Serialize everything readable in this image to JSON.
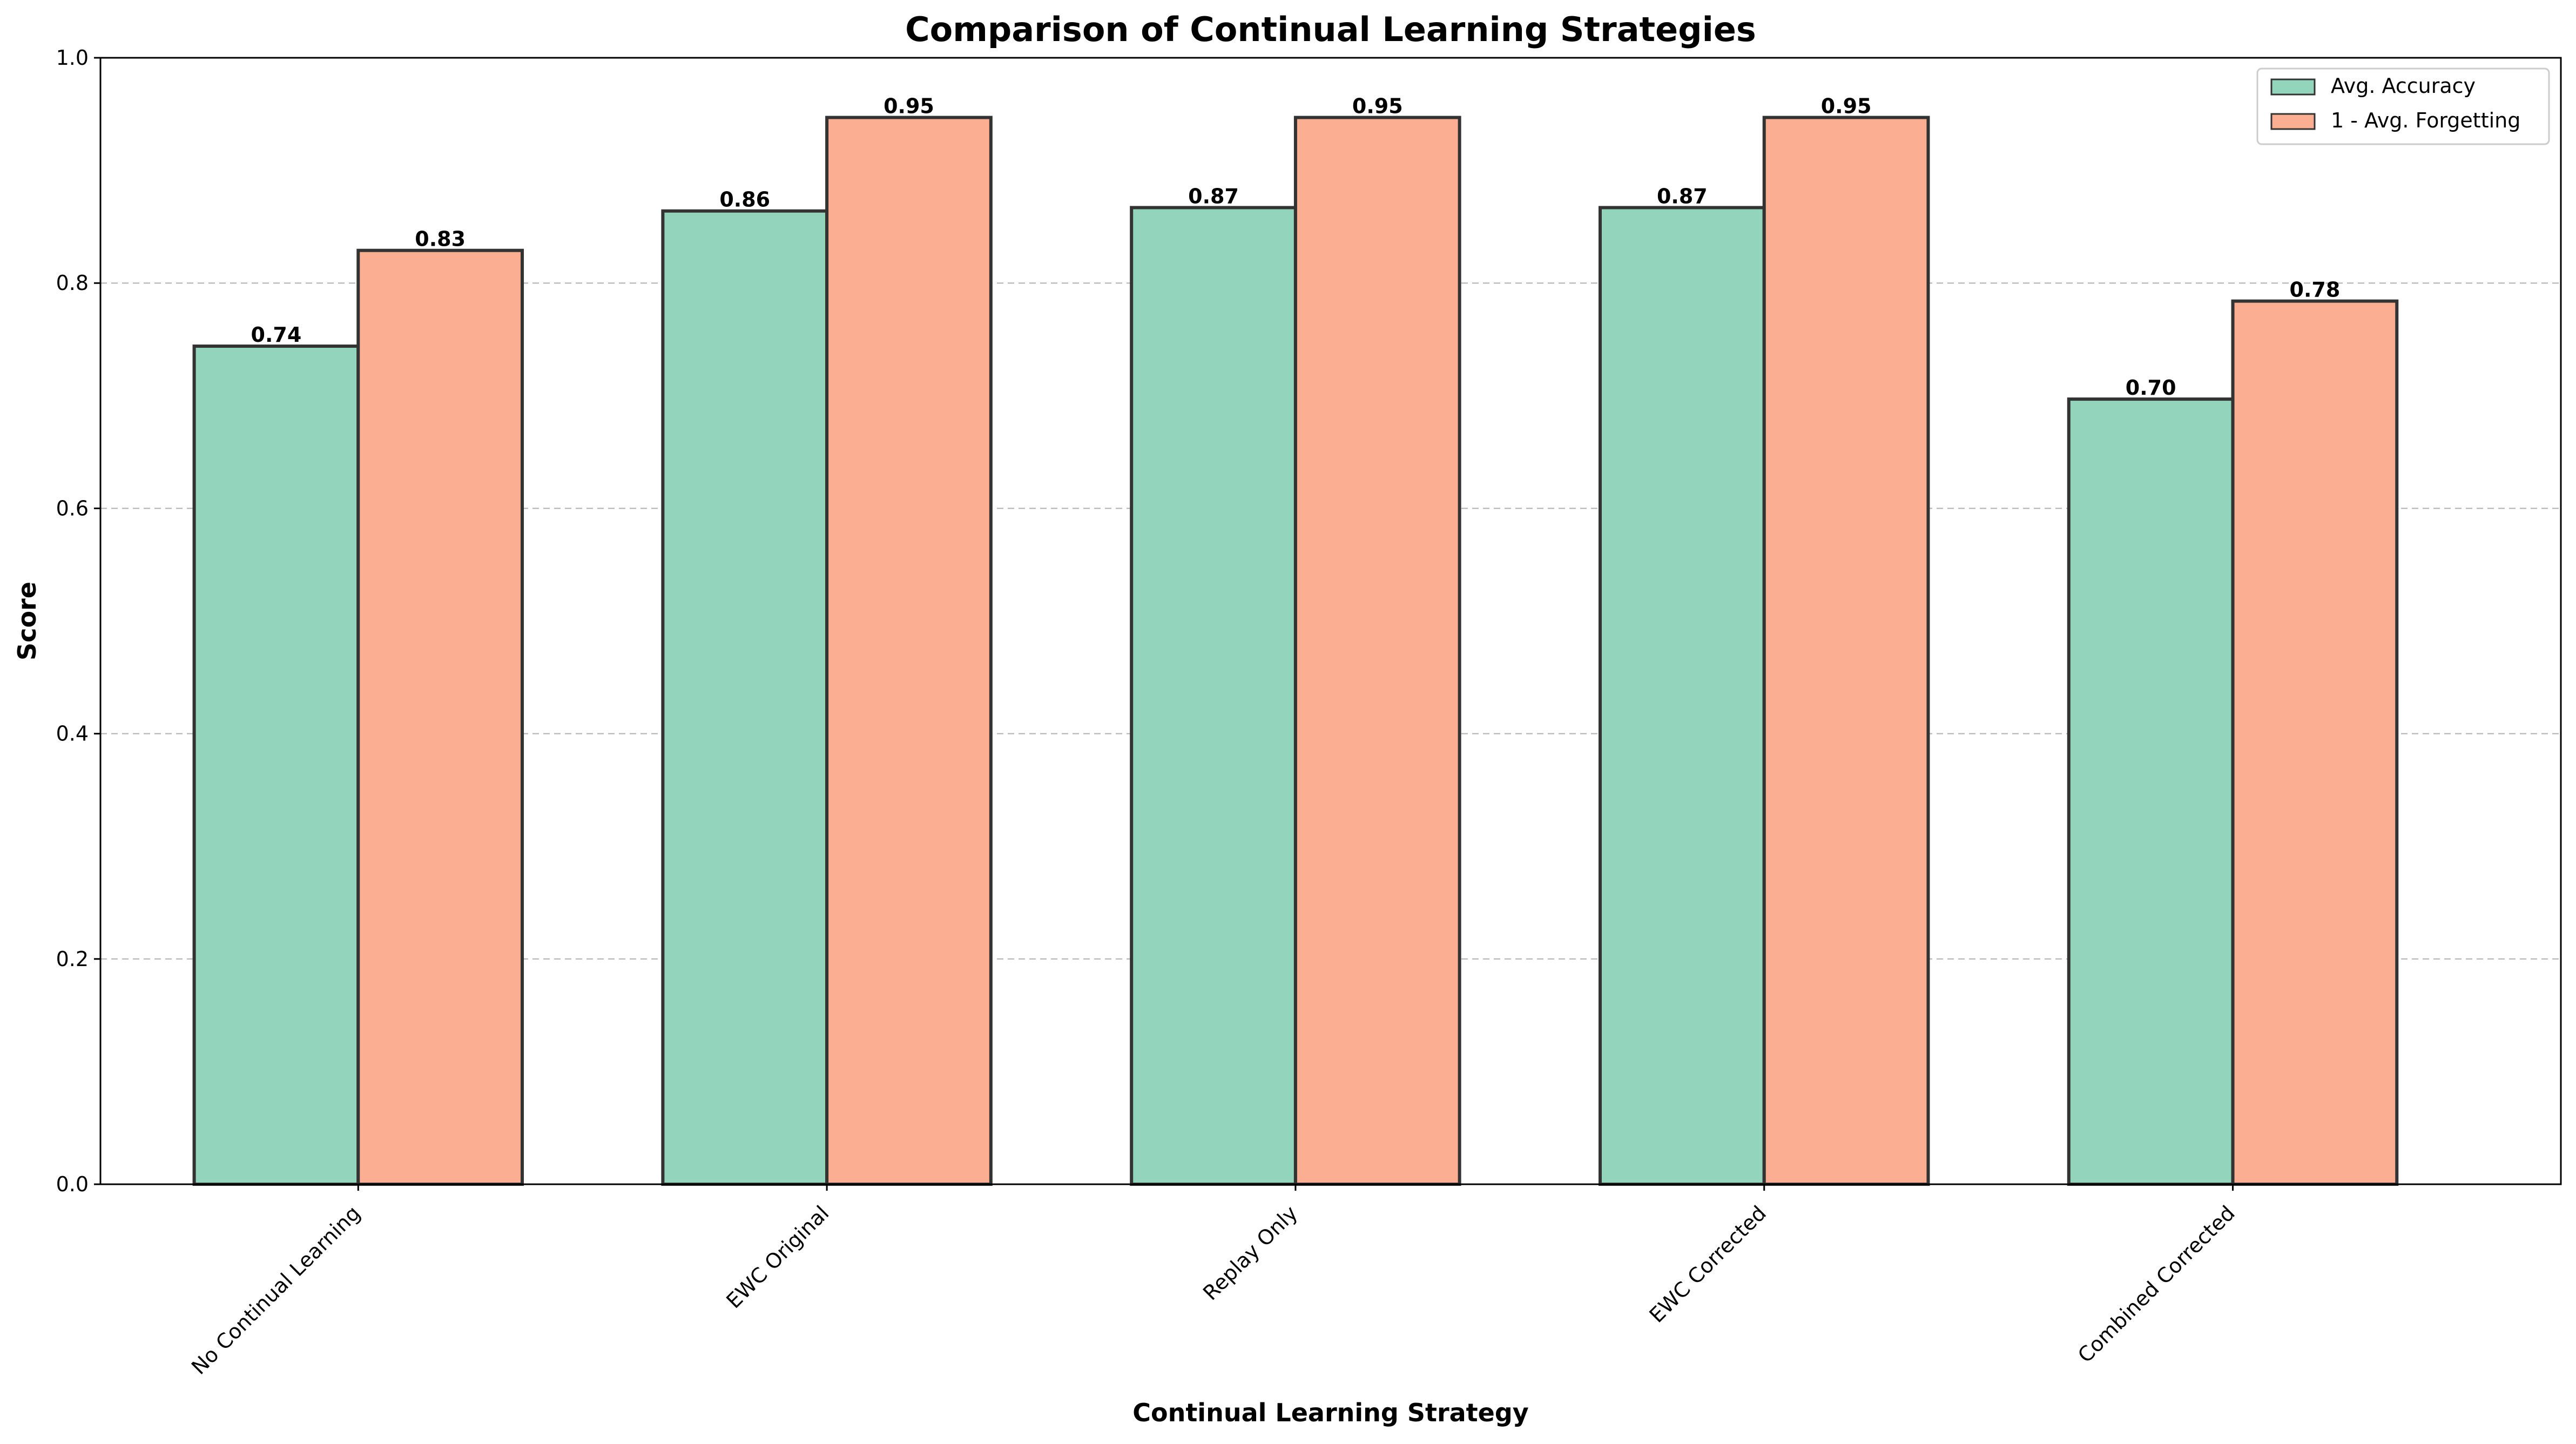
{
  "chart_data": {
    "type": "bar",
    "title": "Comparison of Continual Learning Strategies",
    "xlabel": "Continual Learning Strategy",
    "ylabel": "Score",
    "ylim": [
      0,
      1.0
    ],
    "yticks": [
      "0.0",
      "0.2",
      "0.4",
      "0.6",
      "0.8",
      "1.0"
    ],
    "ytick_values": [
      0.0,
      0.2,
      0.4,
      0.6,
      0.8,
      1.0
    ],
    "grid": "y-dashed",
    "legend_position": "top-right",
    "categories": [
      "No Continual Learning",
      "EWC Original",
      "Replay Only",
      "EWC Corrected",
      "Combined Corrected"
    ],
    "series": [
      {
        "name": "Avg. Accuracy",
        "color": "#93d4bd",
        "values": [
          0.744,
          0.864,
          0.867,
          0.867,
          0.697
        ],
        "labels": [
          "0.74",
          "0.86",
          "0.87",
          "0.87",
          "0.70"
        ]
      },
      {
        "name": "1 - Avg. Forgetting",
        "color": "#fbae91",
        "values": [
          0.829,
          0.947,
          0.947,
          0.947,
          0.784
        ],
        "labels": [
          "0.83",
          "0.95",
          "0.95",
          "0.95",
          "0.78"
        ]
      }
    ]
  }
}
